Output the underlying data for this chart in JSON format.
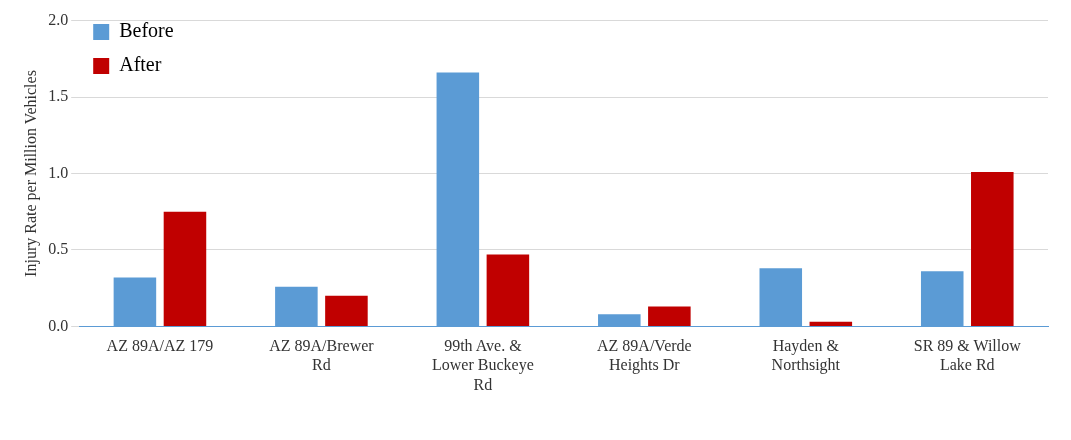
{
  "chart_data": {
    "type": "bar",
    "ylabel": "Injury Rate per Million Vehicles",
    "categories": [
      "AZ 89A/AZ 179",
      "AZ 89A/Brewer Rd",
      "99th Ave. & Lower Buckeye Rd",
      "AZ 89A/Verde Heights Dr",
      "Hayden & Northsight",
      "SR 89 & Willow Lake Rd"
    ],
    "series": [
      {
        "name": "Before",
        "color": "#5b9bd5",
        "values": [
          0.32,
          0.26,
          1.66,
          0.08,
          0.38,
          0.36
        ]
      },
      {
        "name": "After",
        "color": "#c00000",
        "values": [
          0.75,
          0.2,
          0.47,
          0.13,
          0.03,
          1.01
        ]
      }
    ],
    "ylim": [
      0,
      2
    ],
    "yticks": [
      {
        "value": 0,
        "label": "0.0"
      },
      {
        "value": 0.5,
        "label": "0.5"
      },
      {
        "value": 1,
        "label": "1.0"
      },
      {
        "value": 1.5,
        "label": "1.5"
      },
      {
        "value": 2,
        "label": "2.0"
      }
    ],
    "grid": "y",
    "legend": "top left"
  }
}
